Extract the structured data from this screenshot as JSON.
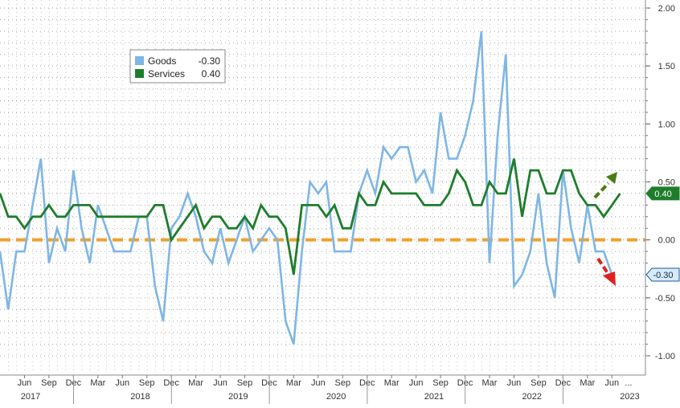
{
  "chart_data": {
    "type": "line",
    "title": "",
    "xlabel": "",
    "ylabel": "",
    "ylim": [
      -1.0,
      2.0
    ],
    "y_ticks": [
      "2.00",
      "1.50",
      "1.00",
      "0.50",
      "0.00",
      "-0.50",
      "-1.00"
    ],
    "grid": true,
    "legend_position": "top-left",
    "x_month_labels": [
      "Jun",
      "Sep",
      "Dec",
      "Mar",
      "Jun",
      "Sep",
      "Dec",
      "Mar",
      "Jun",
      "Sep",
      "Dec",
      "Mar",
      "Jun",
      "Sep",
      "Dec",
      "Mar",
      "Jun",
      "Sep",
      "Dec",
      "Mar",
      "Jun",
      "Sep",
      "Dec",
      "Mar",
      "Jun"
    ],
    "x_year_labels": [
      "2017",
      "2018",
      "2019",
      "2020",
      "2021",
      "2022",
      "2023"
    ],
    "x_start": "2017-03",
    "series": [
      {
        "name": "Goods",
        "color": "#7eb6e6",
        "last_value_label": "-0.30",
        "values": [
          -0.1,
          -0.6,
          -0.1,
          -0.1,
          0.3,
          0.7,
          -0.2,
          0.1,
          -0.1,
          0.6,
          0.1,
          -0.2,
          0.3,
          0.1,
          -0.1,
          -0.1,
          -0.1,
          0.2,
          0.2,
          -0.4,
          -0.7,
          0.1,
          0.2,
          0.4,
          0.2,
          -0.1,
          -0.2,
          0.1,
          -0.2,
          0.0,
          0.2,
          -0.1,
          0.0,
          0.1,
          0.0,
          -0.7,
          -0.9,
          -0.1,
          0.5,
          0.4,
          0.5,
          -0.1,
          -0.1,
          -0.1,
          0.4,
          0.6,
          0.4,
          0.8,
          0.7,
          0.8,
          0.8,
          0.5,
          0.6,
          0.4,
          1.1,
          0.7,
          0.7,
          0.9,
          1.2,
          1.8,
          -0.2,
          0.9,
          1.6,
          -0.4,
          -0.3,
          -0.1,
          0.4,
          -0.2,
          -0.5,
          0.6,
          0.1,
          -0.2,
          0.3,
          -0.1,
          -0.1,
          -0.3
        ]
      },
      {
        "name": "Services",
        "color": "#1e7d2b",
        "last_value_label": "0.40",
        "values": [
          0.4,
          0.2,
          0.2,
          0.1,
          0.2,
          0.2,
          0.3,
          0.2,
          0.2,
          0.3,
          0.3,
          0.3,
          0.2,
          0.2,
          0.2,
          0.2,
          0.2,
          0.2,
          0.2,
          0.3,
          0.3,
          0.0,
          0.1,
          0.2,
          0.3,
          0.1,
          0.2,
          0.2,
          0.1,
          0.1,
          0.2,
          0.1,
          0.3,
          0.2,
          0.2,
          0.1,
          -0.3,
          0.3,
          0.3,
          0.3,
          0.2,
          0.3,
          0.1,
          0.1,
          0.4,
          0.3,
          0.3,
          0.5,
          0.4,
          0.4,
          0.4,
          0.4,
          0.3,
          0.3,
          0.3,
          0.4,
          0.6,
          0.5,
          0.3,
          0.3,
          0.5,
          0.4,
          0.4,
          0.7,
          0.2,
          0.6,
          0.6,
          0.4,
          0.4,
          0.6,
          0.6,
          0.4,
          0.3,
          0.3,
          0.2,
          0.3,
          0.4
        ]
      }
    ],
    "reference_line": {
      "value": 0.0,
      "color": "#f0a030"
    },
    "legend": [
      {
        "name": "Goods",
        "value": "-0.30",
        "color": "#7eb6e6"
      },
      {
        "name": "Services",
        "value": "0.40",
        "color": "#1e7d2b"
      }
    ],
    "annotations": [
      {
        "type": "arrow-up",
        "color": "#4a7d12"
      },
      {
        "type": "arrow-down",
        "color": "#e02020"
      }
    ]
  }
}
